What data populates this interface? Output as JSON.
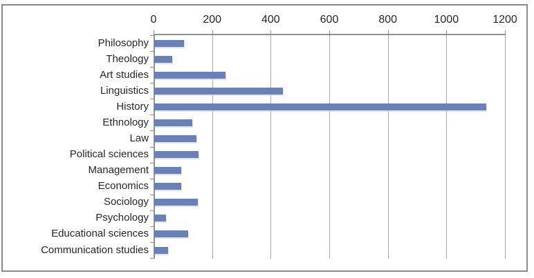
{
  "chart_data": {
    "type": "bar",
    "orientation": "horizontal",
    "title": "",
    "categories": [
      "Philosophy",
      "Theology",
      "Art studies",
      "Linguistics",
      "History",
      "Ethnology",
      "Law",
      "Political sciences",
      "Management",
      "Economics",
      "Sociology",
      "Psychology",
      "Educational sciences",
      "Communication studies"
    ],
    "values": [
      101,
      62,
      243,
      440,
      1135,
      130,
      145,
      151,
      92,
      92,
      148,
      40,
      115,
      48
    ],
    "xlim": [
      0,
      1200
    ],
    "x_ticks": [
      0,
      200,
      400,
      600,
      800,
      1000,
      1200
    ],
    "value_axis_position": "top",
    "grid": true,
    "legend": "none",
    "colors": {
      "bar": "#6981B6",
      "gridline": "#A9A9A9",
      "axis": "#8F8F8F",
      "text": "#262626",
      "frame_border": "#8A8A8A",
      "background": "#FFFFFF"
    }
  }
}
